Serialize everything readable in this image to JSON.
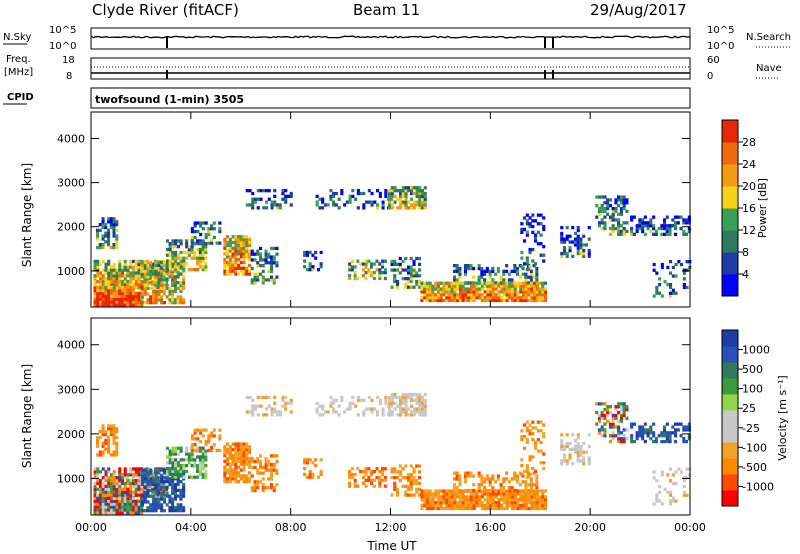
{
  "header": {
    "station": "Clyde River (fitACF)",
    "beam": "Beam 11",
    "date": "29/Aug/2017"
  },
  "top_panels": {
    "nsky_label": "N.Sky",
    "nsky_ticks": [
      "10^5",
      "10^0"
    ],
    "nsearch_label": "N.Search",
    "freq_label": "Freq.",
    "freq_unit": "[MHz]",
    "freq_ticks": [
      "18",
      "8"
    ],
    "nave_label": "Nave",
    "nave_ticks": [
      "60",
      "0"
    ],
    "cpid_label": "CPID",
    "cpid_text": "twofsound (1-min) 3505"
  },
  "colors": {
    "power_scale": [
      "#0000ff",
      "#1e3ca8",
      "#2f7a5e",
      "#3aa055",
      "#f5d31a",
      "#f39c12",
      "#ee6a0c",
      "#e8260b"
    ],
    "velocity_scale": [
      "#ff0000",
      "#ff4a00",
      "#ff8a00",
      "#f0a22a",
      "#c8c8c8",
      "#c8c8c8",
      "#8fd64a",
      "#3c9a3c",
      "#2f7a5e",
      "#2850b8",
      "#1e3ca8"
    ]
  },
  "chart_data": [
    {
      "type": "heatmap",
      "name": "power",
      "ylabel": "Slant Range [km]",
      "yticks": [
        "4000",
        "3000",
        "2000",
        "1000"
      ],
      "ylim": [
        180,
        4600
      ],
      "xlim": [
        0,
        24
      ],
      "xticks": [
        "00:00",
        "04:00",
        "08:00",
        "12:00",
        "16:00",
        "20:00",
        "00:00"
      ],
      "colorbar_label": "Power [dB]",
      "colorbar_ticks": [
        "28",
        "24",
        "20",
        "16",
        "12",
        "8",
        "4"
      ],
      "colorbar_range": [
        0,
        32
      ]
    },
    {
      "type": "heatmap",
      "name": "velocity",
      "ylabel": "Slant Range [km]",
      "yticks": [
        "4000",
        "3000",
        "2000",
        "1000"
      ],
      "ylim": [
        180,
        4600
      ],
      "xlim": [
        0,
        24
      ],
      "xticks": [
        "00:00",
        "04:00",
        "08:00",
        "12:00",
        "16:00",
        "20:00",
        "00:00"
      ],
      "xlabel": "Time UT",
      "colorbar_label": "Velocity [m s⁻¹]",
      "colorbar_ticks": [
        "1000",
        "500",
        "100",
        "25",
        "-25",
        "-100",
        "-500",
        "-1000"
      ]
    }
  ]
}
